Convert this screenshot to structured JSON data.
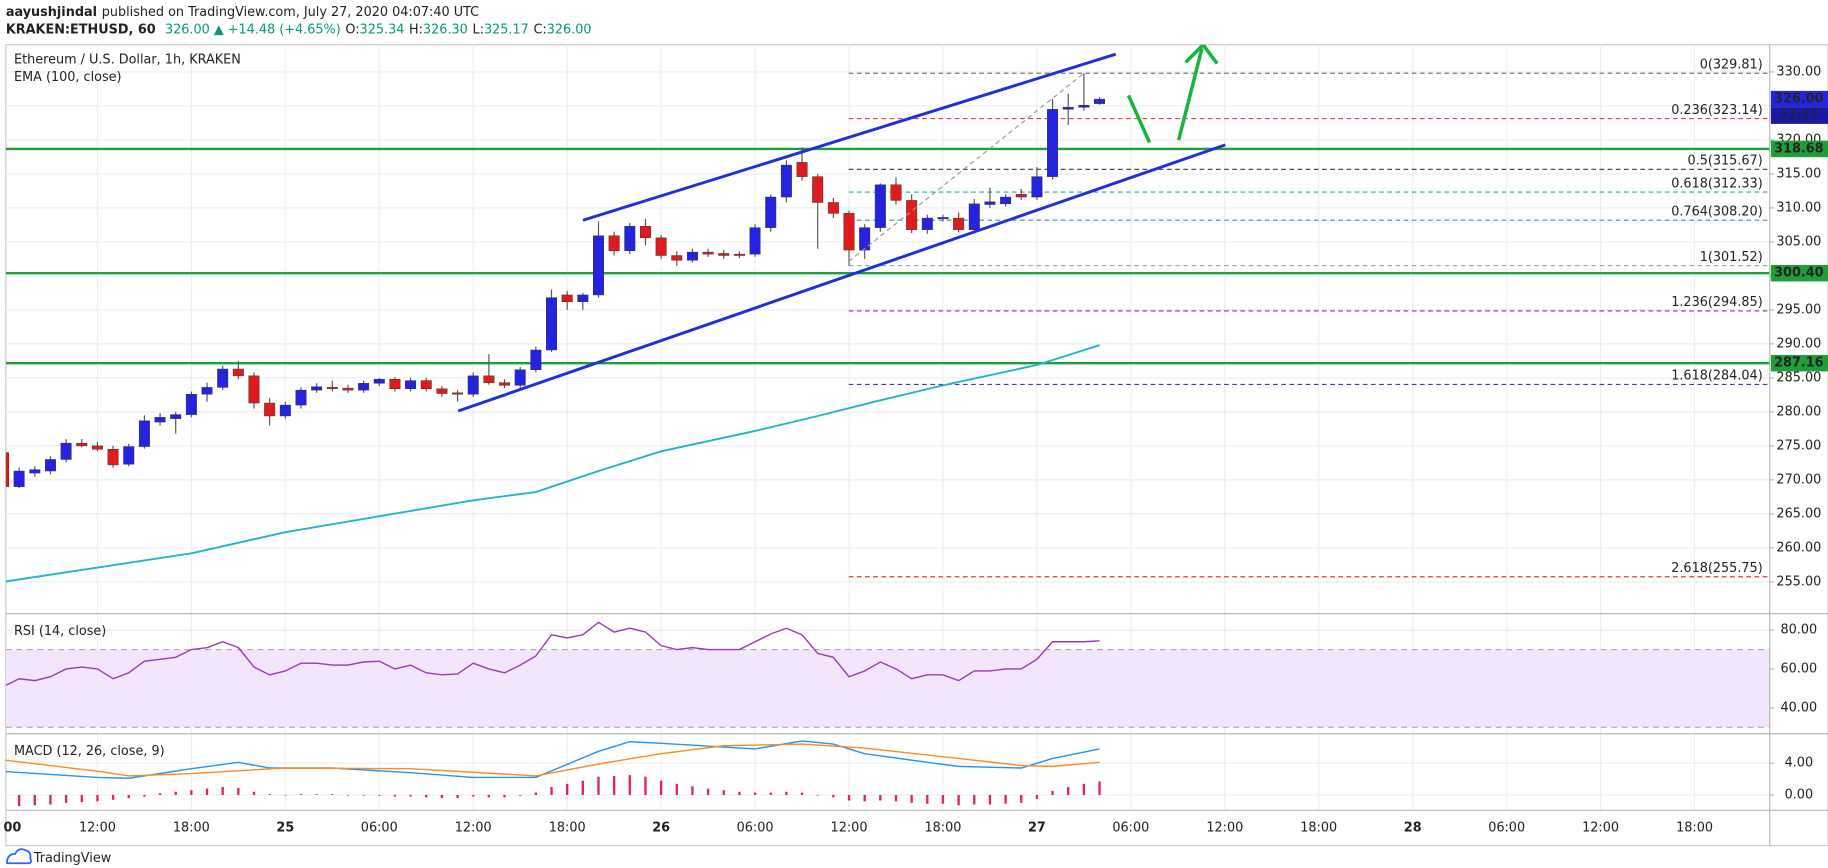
{
  "header": {
    "author": "aayushjindal",
    "published": "published on TradingView.com, July 27, 2020 04:07:40 UTC",
    "symbol": "KRAKEN:ETHUSD, 60",
    "quote": "326.00 ▲ +14.48 (+4.65%)",
    "ohlc": [
      "O:",
      "325.34",
      "H:",
      "326.30",
      "L:",
      "325.17",
      "C:",
      "326.00"
    ]
  },
  "chart_data": [
    {
      "type": "candlestick",
      "title": "Ethereum / U.S. Dollar, 1h, KRAKEN",
      "up_color": "#2424e0",
      "down_color": "#e01b1b",
      "x": [
        6,
        7,
        8,
        9,
        10,
        11,
        12,
        13,
        14,
        15,
        16,
        17,
        18,
        19,
        20,
        21,
        22,
        23,
        24,
        25,
        26,
        27,
        28,
        29,
        30,
        31,
        32,
        33,
        34,
        35,
        36,
        37,
        38,
        39,
        40,
        41,
        42,
        43,
        44,
        45,
        46,
        47,
        48,
        49,
        50,
        51,
        52,
        53,
        54,
        55,
        56,
        57,
        58,
        59,
        60,
        61,
        62,
        63,
        64,
        65,
        66,
        67,
        68,
        69,
        70,
        71,
        72,
        73,
        74,
        75,
        76
      ],
      "open": [
        274,
        269,
        271,
        271.3,
        273,
        275.4,
        275,
        274.5,
        272.3,
        274.9,
        278.5,
        279,
        279.6,
        282.6,
        283.6,
        286.3,
        285.3,
        281.3,
        279.4,
        281,
        283.2,
        283.6,
        283.5,
        283.2,
        284.2,
        284.8,
        283.4,
        284.6,
        283.4,
        282.8,
        282.6,
        285.3,
        284.3,
        283.9,
        286.2,
        289.1,
        297.2,
        296.2,
        297.2,
        305.9,
        303.7,
        307.3,
        305.6,
        303,
        302.3,
        303.5,
        303.3,
        303.2,
        303.2,
        307.1,
        311.6,
        316.7,
        314.6,
        310.8,
        309.2,
        303.8,
        307.1,
        313.4,
        311.1,
        306.8,
        308.4,
        308.5,
        306.8,
        310.5,
        310.6,
        312,
        311.6,
        314.6,
        324.5,
        324.8,
        325.34
      ],
      "high": [
        275,
        271.8,
        272,
        273.5,
        276,
        276,
        275.6,
        275,
        275.3,
        279.5,
        279.8,
        280,
        283,
        284.3,
        286.8,
        287.5,
        285.8,
        282,
        281.5,
        283.6,
        284.2,
        284.6,
        284,
        284.6,
        285,
        285.1,
        285,
        285,
        283.8,
        283.2,
        285.8,
        288.5,
        284.8,
        286.6,
        289.6,
        298,
        297.8,
        297.5,
        308,
        306.5,
        307.8,
        308.4,
        306,
        303.6,
        304,
        304,
        303.8,
        303.6,
        307.6,
        312,
        317,
        318.9,
        315,
        311.5,
        309.6,
        307.6,
        313.6,
        314.5,
        312,
        309,
        309,
        309.3,
        311.3,
        313,
        312,
        312.8,
        316,
        326,
        326.8,
        329.81,
        326.3
      ],
      "low": [
        268.5,
        268.8,
        270.5,
        270.8,
        272.6,
        274.8,
        274.2,
        271.8,
        272,
        274.6,
        278,
        276.8,
        279.2,
        281.5,
        283.2,
        284.8,
        280.5,
        278,
        279,
        280.5,
        282.8,
        283,
        282.8,
        282.8,
        283.8,
        283,
        283,
        283,
        282.2,
        281.5,
        282.2,
        284,
        283.5,
        283.5,
        285.8,
        288.8,
        295,
        295,
        296.8,
        303,
        303.2,
        304.5,
        302.5,
        301.5,
        302,
        302.8,
        302.5,
        302.6,
        302.8,
        306.5,
        310.8,
        314,
        304,
        308.5,
        301.5,
        302.5,
        306.5,
        310.5,
        306.3,
        306.2,
        308,
        306.4,
        306.4,
        310,
        310.2,
        311.2,
        311.2,
        314.2,
        322.2,
        324.3,
        325.17
      ],
      "close": [
        269,
        271.3,
        271.5,
        273,
        275.4,
        275,
        274.5,
        272.2,
        274.9,
        278.7,
        279.2,
        279.6,
        282.6,
        283.6,
        286.3,
        285.3,
        281.3,
        279.4,
        281,
        283.2,
        283.7,
        283.4,
        283.2,
        284.2,
        284.8,
        283.4,
        284.6,
        283.4,
        282.7,
        282.6,
        285.3,
        284.3,
        283.9,
        286.2,
        289.1,
        296.8,
        296.2,
        297.2,
        305.9,
        303.7,
        307.3,
        305.6,
        303,
        302.3,
        303.5,
        303.2,
        303,
        303,
        307.1,
        311.6,
        316.3,
        314.6,
        310.8,
        309.2,
        303.8,
        307.1,
        313.4,
        311.1,
        306.8,
        308.5,
        308.6,
        306.8,
        310.6,
        310.9,
        311.6,
        311.6,
        314.6,
        324.5,
        324.8,
        325.1,
        326
      ],
      "series": [
        {
          "name": "EMA (100, close)",
          "color": "#1fb5cf",
          "x": [
            6,
            18,
            24,
            36,
            40,
            44,
            48,
            54,
            58,
            62,
            66,
            72,
            76
          ],
          "values": [
            255.0,
            259.2,
            262.3,
            267.0,
            268.2,
            271.3,
            274.2,
            277.2,
            279.4,
            281.7,
            283.9,
            286.9,
            289.8
          ]
        }
      ],
      "levels": [
        {
          "value": 318.68,
          "label": "318.68",
          "color": "#1f9e3a"
        },
        {
          "value": 300.4,
          "label": "300.40",
          "color": "#1f9e3a"
        },
        {
          "value": 287.16,
          "label": "287.16",
          "color": "#1f9e3a"
        }
      ],
      "fib": [
        {
          "value": 329.81,
          "label": "0(329.81)",
          "color": "#787b86"
        },
        {
          "value": 323.14,
          "label": "0.236(323.14)",
          "color": "#f23645"
        },
        {
          "value": 315.67,
          "label": "0.5(315.67)",
          "color": "#4a4a55"
        },
        {
          "value": 312.33,
          "label": "0.618(312.33)",
          "color": "#22ab94"
        },
        {
          "value": 308.2,
          "label": "0.764(308.20)",
          "color": "#3d8bc4"
        },
        {
          "value": 301.52,
          "label": "1(301.52)",
          "color": "#8aaed0"
        },
        {
          "value": 294.85,
          "label": "1.236(294.85)",
          "color": "#9c27b0"
        },
        {
          "value": 284.04,
          "label": "1.618(284.04)",
          "color": "#3a3ab8"
        },
        {
          "value": 255.75,
          "label": "2.618(255.75)",
          "color": "#e53935"
        }
      ],
      "price_tag": {
        "value": 326,
        "label": "326.00",
        "countdown": "52:27",
        "color": "#2424e0"
      },
      "xlim": [
        6.15,
        118.8
      ],
      "ylim": [
        250.5,
        334
      ],
      "grid": true,
      "yticks": [
        {
          "value": 255,
          "label": "255.00"
        },
        {
          "value": 260,
          "label": "260.00"
        },
        {
          "value": 265,
          "label": "265.00"
        },
        {
          "value": 270,
          "label": "270.00"
        },
        {
          "value": 275,
          "label": "275.00"
        },
        {
          "value": 280,
          "label": "280.00"
        },
        {
          "value": 285,
          "label": "285.00"
        },
        {
          "value": 290,
          "label": "290.00"
        },
        {
          "value": 295,
          "label": "295.00"
        },
        {
          "value": 300,
          "label": "300.00"
        },
        {
          "value": 305,
          "label": "305.00"
        },
        {
          "value": 310,
          "label": "310.00"
        },
        {
          "value": 315,
          "label": "315.00"
        },
        {
          "value": 320,
          "label": "320.00"
        },
        {
          "value": 325,
          "label": "325.00"
        },
        {
          "value": 330,
          "label": "330.00"
        }
      ]
    },
    {
      "type": "line",
      "title": "RSI (14, close)",
      "color": "#9b3bb5",
      "band": [
        30,
        70
      ],
      "band_color": "#f3e5fb",
      "x": [
        6,
        7,
        8,
        9,
        10,
        11,
        12,
        13,
        14,
        15,
        16,
        17,
        18,
        19,
        20,
        21,
        22,
        23,
        24,
        25,
        26,
        27,
        28,
        29,
        30,
        31,
        32,
        33,
        34,
        35,
        36,
        37,
        38,
        39,
        40,
        41,
        42,
        43,
        44,
        45,
        46,
        47,
        48,
        49,
        50,
        51,
        52,
        53,
        54,
        55,
        56,
        57,
        58,
        59,
        60,
        61,
        62,
        63,
        64,
        65,
        66,
        67,
        68,
        69,
        70,
        71,
        72,
        73,
        74,
        75,
        76
      ],
      "values": [
        51,
        55,
        54,
        56,
        60,
        61,
        60,
        55,
        58,
        64,
        65,
        66,
        70,
        71,
        74,
        71,
        61,
        57,
        59,
        63,
        63,
        62,
        62,
        63.6,
        64,
        60,
        62,
        58,
        57,
        57.5,
        63,
        60,
        58,
        62,
        66.7,
        77.6,
        76,
        77.6,
        84,
        79,
        81,
        79,
        72,
        70,
        71,
        70,
        70,
        70,
        74,
        78,
        81,
        77.6,
        68,
        66,
        56,
        59,
        63.6,
        60,
        55,
        57,
        57,
        54,
        59,
        59,
        60,
        60,
        65,
        74,
        74,
        74,
        74.5
      ],
      "xlim": [
        6.15,
        118.8
      ],
      "ylim": [
        26.7,
        88.5
      ],
      "grid": true,
      "yticks": [
        {
          "value": 40,
          "label": "40.00"
        },
        {
          "value": 60,
          "label": "60.00"
        },
        {
          "value": 80,
          "label": "80.00"
        }
      ]
    },
    {
      "type": "macd",
      "title": "MACD (12, 26, close, 9)",
      "histogram": {
        "color": "#e91e63",
        "x": [
          6,
          7,
          8,
          9,
          10,
          11,
          12,
          13,
          14,
          15,
          16,
          17,
          18,
          19,
          20,
          21,
          22,
          23,
          24,
          25,
          26,
          27,
          28,
          29,
          30,
          31,
          32,
          33,
          34,
          35,
          36,
          37,
          38,
          39,
          40,
          41,
          42,
          43,
          44,
          45,
          46,
          47,
          48,
          49,
          50,
          51,
          52,
          53,
          54,
          55,
          56,
          57,
          58,
          59,
          60,
          61,
          62,
          63,
          64,
          65,
          66,
          67,
          68,
          69,
          70,
          71,
          72,
          73,
          74,
          75,
          76
        ],
        "values": [
          -1.5,
          -1.4,
          -1.3,
          -1.2,
          -1.0,
          -0.9,
          -0.8,
          -0.6,
          -0.4,
          -0.2,
          0.2,
          0.4,
          0.6,
          0.8,
          1.0,
          0.9,
          0.4,
          0.1,
          0.0,
          0.1,
          0.1,
          0.1,
          0.0,
          0.0,
          -0.1,
          -0.2,
          -0.2,
          -0.3,
          -0.4,
          -0.4,
          -0.2,
          -0.3,
          -0.3,
          -0.1,
          0.3,
          1.0,
          1.4,
          1.8,
          2.3,
          2.4,
          2.5,
          2.3,
          1.8,
          1.4,
          1.1,
          0.8,
          0.6,
          0.4,
          0.3,
          0.3,
          0.4,
          0.3,
          0.0,
          -0.3,
          -0.7,
          -0.8,
          -0.7,
          -0.8,
          -1.0,
          -1.1,
          -1.1,
          -1.3,
          -1.2,
          -1.2,
          -1.1,
          -1.0,
          -0.5,
          0.5,
          1.0,
          1.4,
          1.7
        ]
      },
      "series": [
        {
          "color": "#2196f3",
          "x": [
            6,
            12,
            14,
            18,
            21,
            23,
            27,
            32,
            36,
            40,
            44,
            46,
            48,
            54,
            57,
            59,
            61,
            65,
            67,
            71,
            73,
            76
          ],
          "values": [
            2.96,
            2.2,
            2.1,
            3.3,
            4.1,
            3.4,
            3.4,
            2.8,
            2.2,
            2.2,
            5.5,
            6.7,
            6.5,
            5.8,
            6.8,
            6.4,
            5.2,
            4.1,
            3.6,
            3.4,
            4.6,
            5.8
          ]
        },
        {
          "color": "#ff8a1f",
          "x": [
            6,
            12,
            14,
            18,
            24,
            32,
            40,
            44,
            48,
            52,
            57,
            61,
            67,
            71,
            73,
            76
          ],
          "values": [
            4.4,
            3.0,
            2.4,
            2.7,
            3.4,
            3.3,
            2.4,
            3.9,
            5.2,
            6.2,
            6.4,
            5.9,
            4.6,
            3.7,
            3.6,
            4.1
          ]
        }
      ],
      "xlim": [
        6.15,
        118.8
      ],
      "ylim": [
        -1.93,
        7.56
      ],
      "grid": true,
      "yticks": [
        {
          "value": 0,
          "label": "0.00"
        },
        {
          "value": 4,
          "label": "4.00"
        }
      ],
      "xticks": [
        {
          "value": 6,
          "label": "00"
        },
        {
          "value": 12,
          "label": "12:00"
        },
        {
          "value": 18,
          "label": "18:00"
        },
        {
          "value": 24,
          "label": "25"
        },
        {
          "value": 30,
          "label": "06:00"
        },
        {
          "value": 36,
          "label": "12:00"
        },
        {
          "value": 42,
          "label": "18:00"
        },
        {
          "value": 48,
          "label": "26"
        },
        {
          "value": 54,
          "label": "06:00"
        },
        {
          "value": 60,
          "label": "12:00"
        },
        {
          "value": 66,
          "label": "18:00"
        },
        {
          "value": 72,
          "label": "27"
        },
        {
          "value": 78,
          "label": "06:00"
        },
        {
          "value": 84,
          "label": "12:00"
        },
        {
          "value": 90,
          "label": "18:00"
        },
        {
          "value": 96,
          "label": "28"
        },
        {
          "value": 102,
          "label": "06:00"
        },
        {
          "value": 108,
          "label": "12:00"
        },
        {
          "value": 114,
          "label": "18:00"
        }
      ]
    }
  ],
  "footer": {
    "brand": "TradingView"
  }
}
